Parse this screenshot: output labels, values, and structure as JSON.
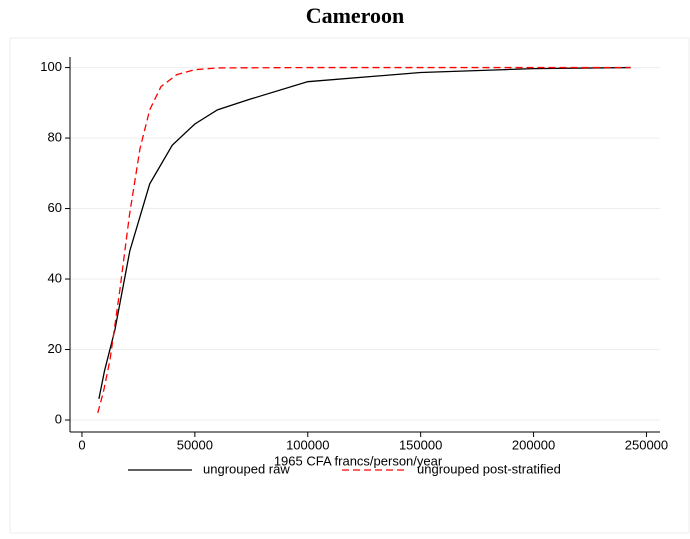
{
  "chart_data": {
    "type": "line",
    "title": "Cameroon",
    "xlabel": "1965 CFA francs/person/year",
    "xlim": [
      -5300,
      256000
    ],
    "ylim": [
      -3.4,
      103
    ],
    "xticks": [
      0,
      50000,
      100000,
      150000,
      200000,
      250000
    ],
    "yticks": [
      0,
      20,
      40,
      60,
      80,
      100
    ],
    "grid": true,
    "series": [
      {
        "name": "ungrouped raw",
        "color": "#000000",
        "dash": false,
        "x": [
          7500,
          10000,
          14600,
          21200,
          30000,
          40000,
          50000,
          60000,
          74300,
          100000,
          150000,
          200000,
          243000
        ],
        "values": [
          6,
          14,
          25.6,
          48,
          67,
          78,
          84,
          88,
          91,
          96,
          98.6,
          99.7,
          100
        ]
      },
      {
        "name": "ungrouped post-stratified",
        "color": "#ff0000",
        "dash": true,
        "x": [
          7000,
          9500,
          12400,
          16800,
          21000,
          25700,
          30000,
          35000,
          42000,
          50000,
          60000,
          100000,
          243000
        ],
        "values": [
          2,
          8,
          17,
          37,
          58,
          77,
          88,
          94.6,
          98,
          99.4,
          99.9,
          100,
          100
        ]
      }
    ]
  }
}
